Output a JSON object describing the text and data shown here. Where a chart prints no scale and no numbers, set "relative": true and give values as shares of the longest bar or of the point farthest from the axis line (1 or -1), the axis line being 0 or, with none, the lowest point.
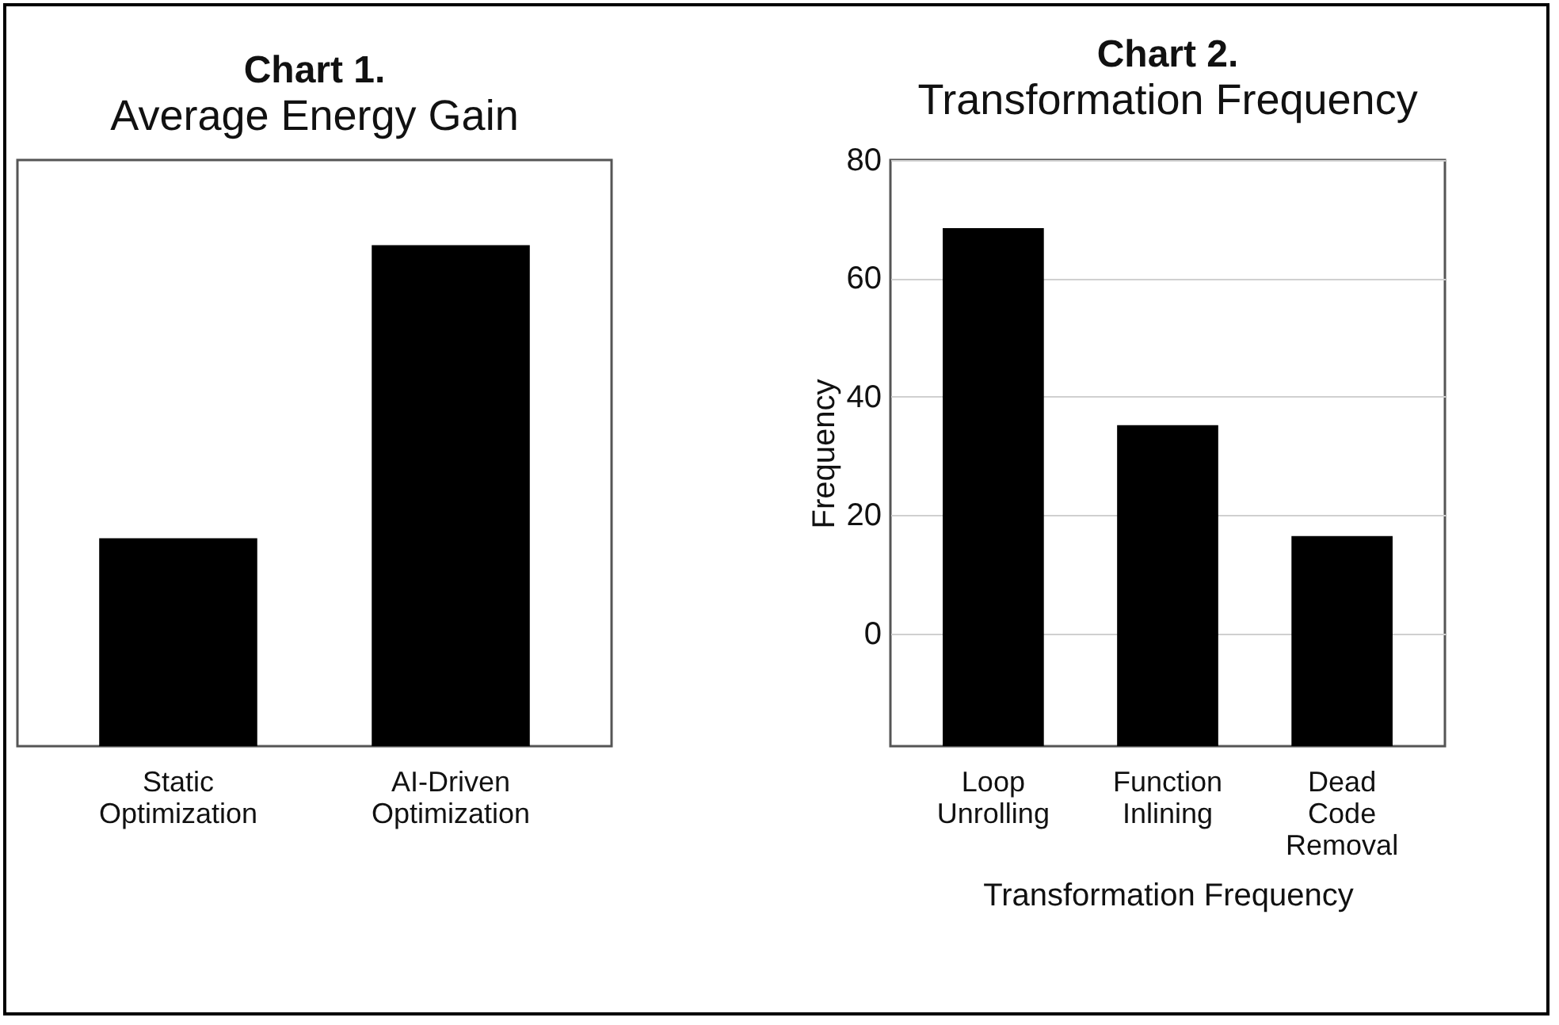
{
  "chart_data": [
    {
      "type": "bar",
      "title": "Chart 1.",
      "subtitle": "Average Energy  Gain",
      "categories": [
        "Static Optimization",
        "AI-Driven Optimization"
      ],
      "values": [
        0.415,
        1
      ],
      "color": "#000000",
      "relative": true
    },
    {
      "type": "bar",
      "title": "Chart 2.",
      "subtitle": "Transformation Frequency",
      "xlabel": "Transformation Frequency",
      "ylabel": "Frequency",
      "categories": [
        "Loop Unrolling",
        "Function Inlining",
        "Dead Code Removal"
      ],
      "values": [
        87.5,
        54.2,
        35.5
      ],
      "base": [
        -19,
        -19,
        -19
      ],
      "color": "#000000",
      "ylim": [
        -19,
        80
      ],
      "yticks": [
        0,
        20,
        40,
        60,
        80
      ],
      "grid": "y"
    }
  ]
}
